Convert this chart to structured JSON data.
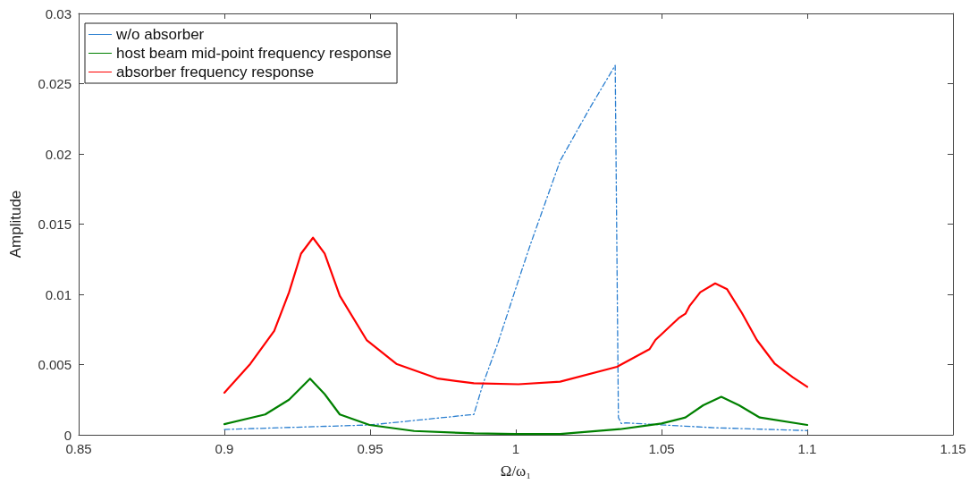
{
  "chart_data": {
    "type": "line",
    "xlabel": "Ω/ω₁",
    "ylabel": "Amplitude",
    "xlim": [
      0.85,
      1.15
    ],
    "xticks": [
      0.85,
      0.9,
      0.95,
      1,
      1.05,
      1.1,
      1.15
    ],
    "ylim": [
      0,
      0.03
    ],
    "yticks": [
      0,
      0.005,
      0.01,
      0.015,
      0.02,
      0.025,
      0.03
    ],
    "grid": false,
    "legend": "top left",
    "marker": "none",
    "series": [
      {
        "name": "w/o absorber",
        "color": "#2b7fd0",
        "line_style": "dashed",
        "x": [
          0.9,
          0.95,
          0.9856,
          0.9887,
          0.9938,
          1.0009,
          1.005,
          1.0152,
          1.0255,
          1.0341,
          1.0352,
          1.0362,
          1.0377,
          1.0684,
          1.1
        ],
        "values": [
          0.00038,
          0.0007,
          0.00145,
          0.0036,
          0.0065,
          0.011,
          0.01355,
          0.0195,
          0.0233,
          0.0263,
          0.00123,
          0.0008,
          0.00085,
          0.0005,
          0.0003
        ]
      },
      {
        "name": "host beam mid-point frequency response",
        "color": "#008000",
        "line_style": "solid",
        "x": [
          0.9,
          0.914,
          0.9222,
          0.9294,
          0.9344,
          0.9396,
          0.9498,
          0.9651,
          0.9856,
          1.0,
          1.0152,
          1.0357,
          1.05,
          1.0582,
          1.0643,
          1.0705,
          1.0766,
          1.0837,
          1.1
        ],
        "values": [
          0.00076,
          0.00145,
          0.0025,
          0.004,
          0.0029,
          0.00145,
          0.0007,
          0.00027,
          0.0001,
          5e-05,
          6e-05,
          0.0004,
          0.0008,
          0.00123,
          0.0021,
          0.0027,
          0.0021,
          0.00123,
          0.0007
        ]
      },
      {
        "name": "absorber frequency response",
        "color": "#ff0000",
        "line_style": "solid",
        "x": [
          0.9,
          0.9089,
          0.9171,
          0.9222,
          0.9263,
          0.9304,
          0.9344,
          0.9396,
          0.9488,
          0.959,
          0.9733,
          0.9856,
          1.0009,
          1.0152,
          1.0347,
          1.0459,
          1.0479,
          1.0561,
          1.0582,
          1.0597,
          1.0633,
          1.0684,
          1.0725,
          1.0776,
          1.0827,
          1.0889,
          1.095,
          1.1
        ],
        "values": [
          0.003,
          0.00505,
          0.0074,
          0.01015,
          0.0129,
          0.01403,
          0.0129,
          0.0099,
          0.00675,
          0.00505,
          0.004,
          0.00367,
          0.0036,
          0.00378,
          0.00484,
          0.0061,
          0.00675,
          0.00834,
          0.00862,
          0.0092,
          0.01015,
          0.01078,
          0.01036,
          0.00866,
          0.00675,
          0.00505,
          0.0041,
          0.00342
        ]
      }
    ]
  }
}
